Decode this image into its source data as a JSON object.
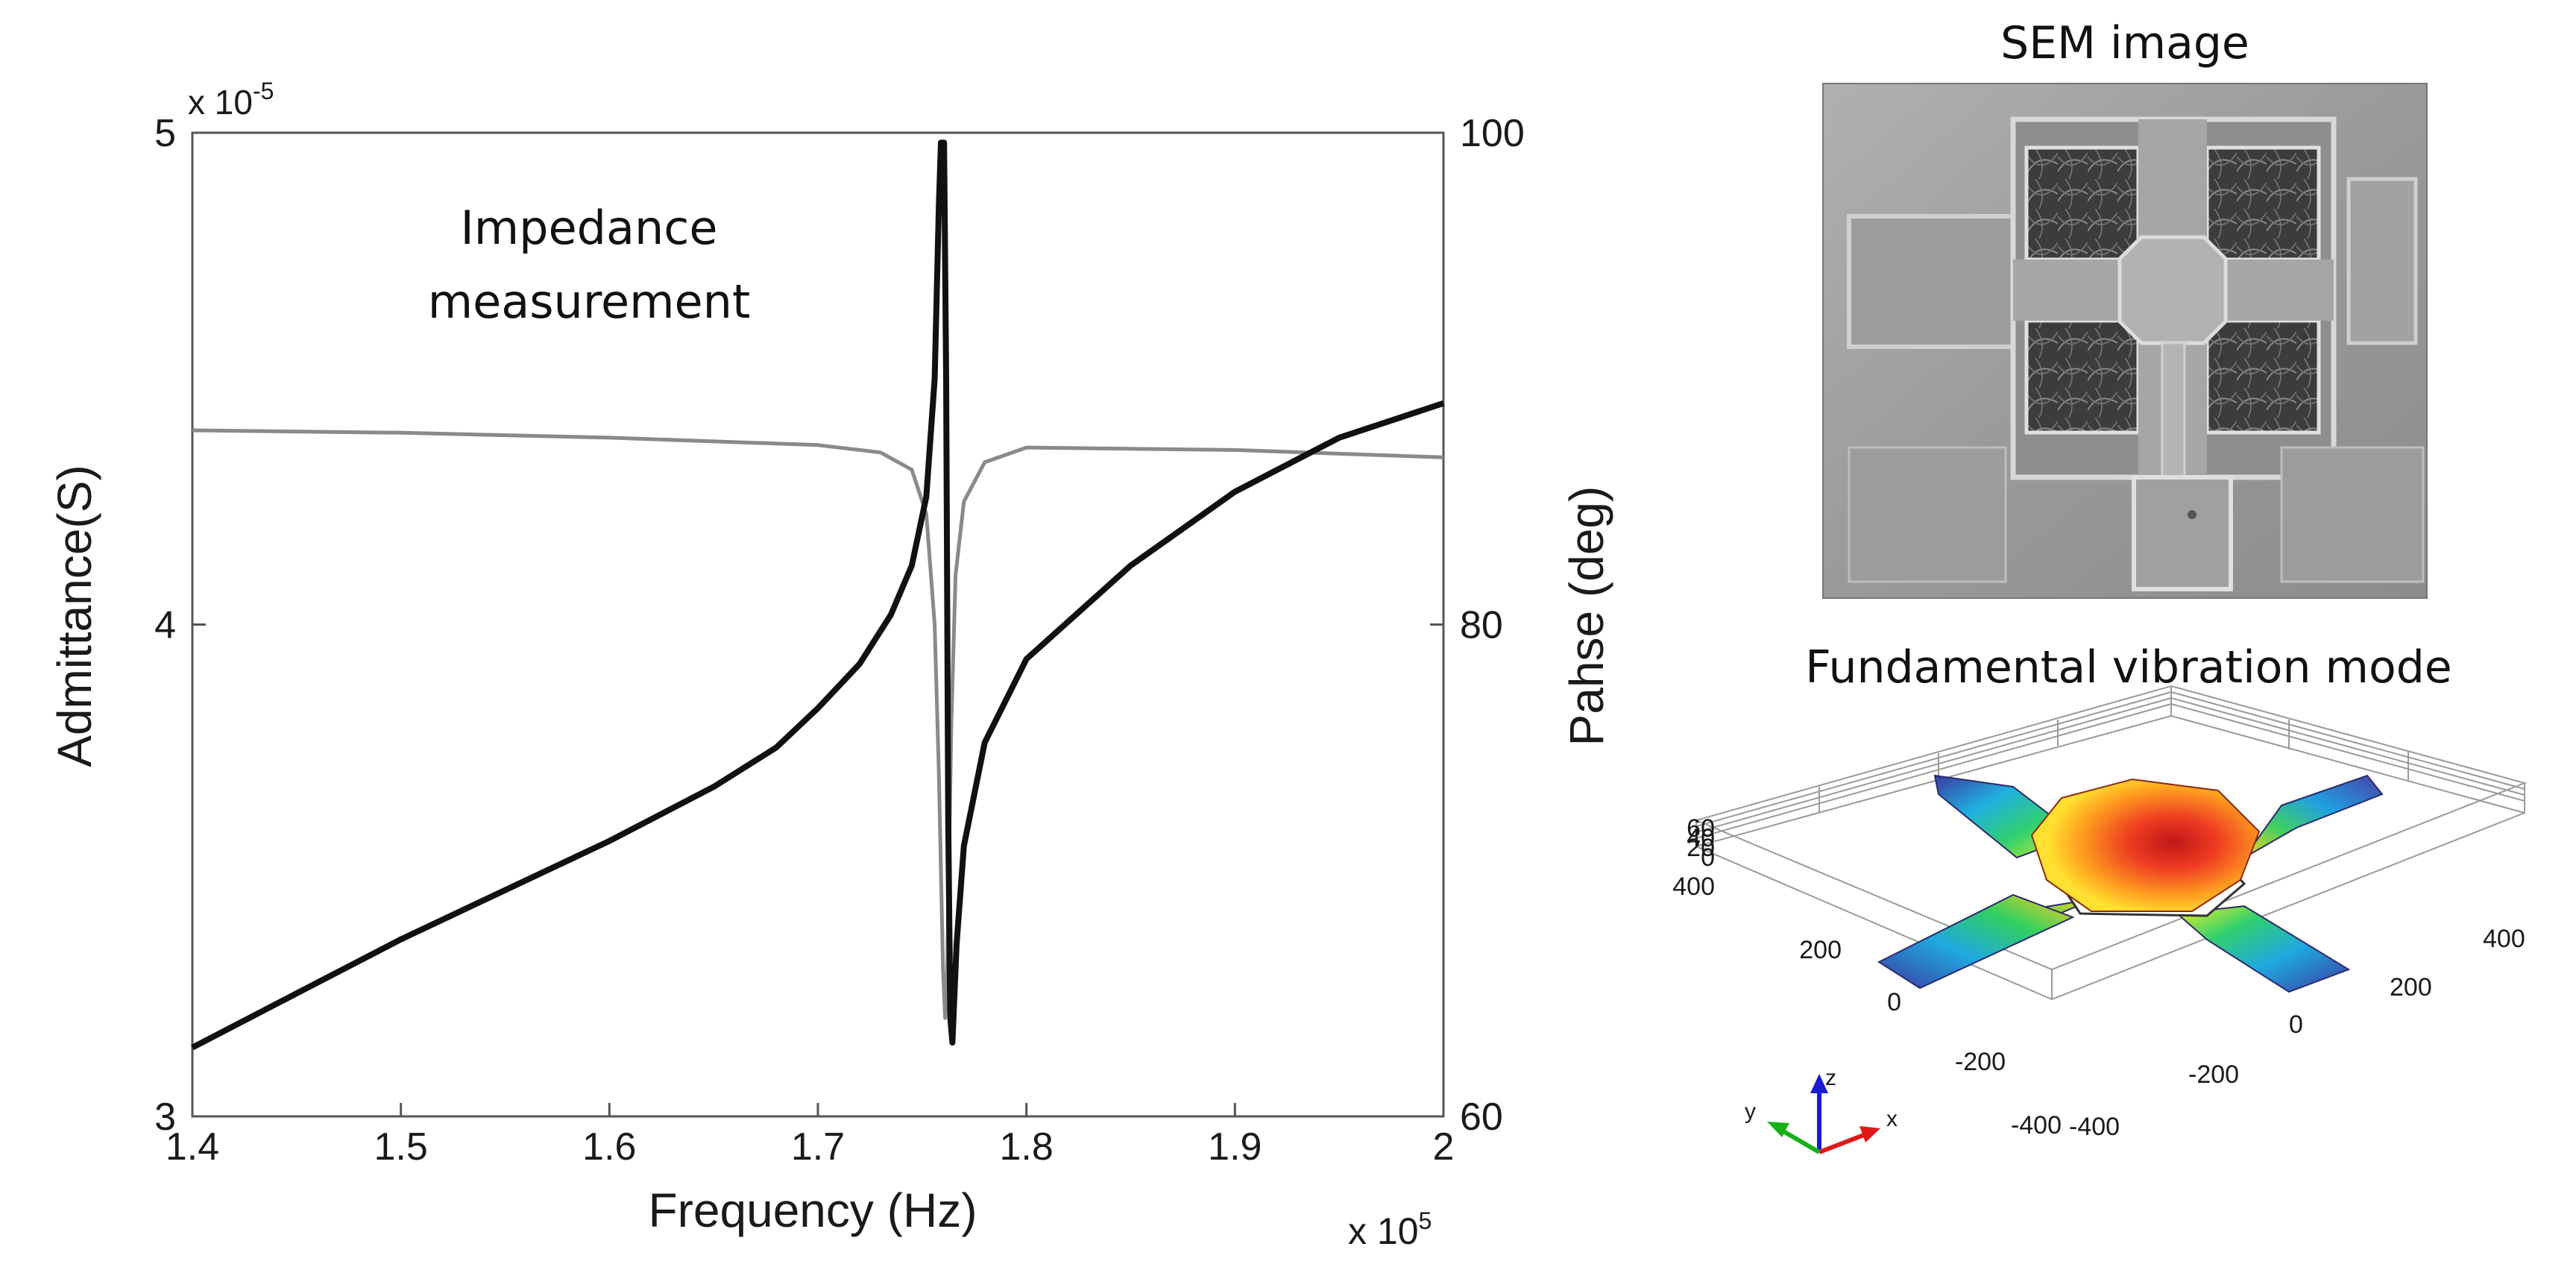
{
  "chart_data": {
    "type": "line",
    "annotation": "Impedance\nmeasurement",
    "xlabel": "Frequency (Hz)",
    "ylabel": "Admittance(S)",
    "y2label": "Pahse (deg)",
    "x_multiplier": "x 10^5",
    "y_multiplier": "x 10^-5",
    "xlim": [
      1.4,
      2.0
    ],
    "ylim": [
      3,
      5
    ],
    "y2lim": [
      60,
      100
    ],
    "x_ticks": [
      "1.4",
      "1.5",
      "1.6",
      "1.7",
      "1.8",
      "1.9",
      "2"
    ],
    "y_ticks": [
      "3",
      "4",
      "5"
    ],
    "y2_ticks": [
      "60",
      "80",
      "100"
    ],
    "series": [
      {
        "name": "Admittance",
        "axis": "left",
        "color": "#111111",
        "points": [
          [
            1.4,
            3.14
          ],
          [
            1.45,
            3.25
          ],
          [
            1.5,
            3.36
          ],
          [
            1.55,
            3.46
          ],
          [
            1.6,
            3.56
          ],
          [
            1.65,
            3.67
          ],
          [
            1.68,
            3.75
          ],
          [
            1.7,
            3.83
          ],
          [
            1.72,
            3.92
          ],
          [
            1.735,
            4.02
          ],
          [
            1.745,
            4.12
          ],
          [
            1.752,
            4.26
          ],
          [
            1.756,
            4.5
          ],
          [
            1.758,
            4.85
          ],
          [
            1.759,
            4.98
          ],
          [
            1.7605,
            4.98
          ],
          [
            1.7615,
            4.5
          ],
          [
            1.7625,
            3.6
          ],
          [
            1.7635,
            3.2
          ],
          [
            1.7645,
            3.15
          ],
          [
            1.7665,
            3.35
          ],
          [
            1.77,
            3.55
          ],
          [
            1.78,
            3.76
          ],
          [
            1.8,
            3.93
          ],
          [
            1.85,
            4.12
          ],
          [
            1.9,
            4.27
          ],
          [
            1.95,
            4.38
          ],
          [
            2.0,
            4.45
          ]
        ]
      },
      {
        "name": "Phase",
        "axis": "right",
        "color": "#8a8a8a",
        "points": [
          [
            1.4,
            87.9
          ],
          [
            1.5,
            87.8
          ],
          [
            1.6,
            87.6
          ],
          [
            1.7,
            87.3
          ],
          [
            1.73,
            87.0
          ],
          [
            1.745,
            86.3
          ],
          [
            1.752,
            84.5
          ],
          [
            1.756,
            80.0
          ],
          [
            1.758,
            74.0
          ],
          [
            1.76,
            66.0
          ],
          [
            1.761,
            64.0
          ],
          [
            1.762,
            66.0
          ],
          [
            1.764,
            76.0
          ],
          [
            1.766,
            82.0
          ],
          [
            1.77,
            85.0
          ],
          [
            1.78,
            86.6
          ],
          [
            1.8,
            87.2
          ],
          [
            1.9,
            87.1
          ],
          [
            2.0,
            86.8
          ]
        ]
      }
    ]
  },
  "panels": {
    "sem_title": "SEM image",
    "mode_title": "Fundamental vibration mode",
    "mode_axis_labels": {
      "z_ticks": [
        "60",
        "40",
        "20",
        "0"
      ],
      "y_ticks": [
        "400",
        "200",
        "0",
        "-200",
        "-400"
      ],
      "x_ticks": [
        "400",
        "200",
        "0",
        "-200",
        "-400"
      ],
      "x_axis": "x",
      "y_axis": "y",
      "z_axis": "z"
    }
  },
  "colors": {
    "admittance": "#111111",
    "phase": "#8a8a8a",
    "sem_background": "#9a9a9a",
    "mode_hot": "#e02020",
    "mode_cold": "#3a3aa0"
  }
}
